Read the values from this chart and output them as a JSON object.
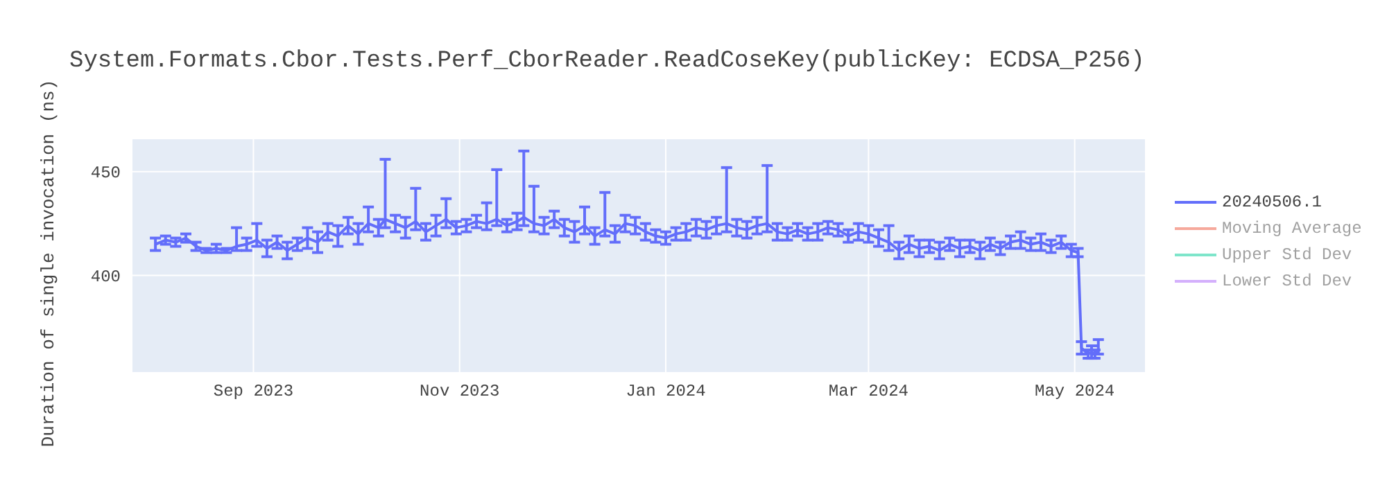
{
  "chart_data": {
    "type": "line",
    "title": "System.Formats.Cbor.Tests.Perf_CborReader.ReadCoseKey(publicKey: ECDSA_P256)",
    "ylabel": "Duration of single invocation (ns)",
    "x": [
      "2023-08-03",
      "2023-08-06",
      "2023-08-09",
      "2023-08-12",
      "2023-08-15",
      "2023-08-18",
      "2023-08-21",
      "2023-08-24",
      "2023-08-27",
      "2023-08-30",
      "2023-09-02",
      "2023-09-05",
      "2023-09-08",
      "2023-09-11",
      "2023-09-14",
      "2023-09-17",
      "2023-09-20",
      "2023-09-23",
      "2023-09-26",
      "2023-09-29",
      "2023-10-02",
      "2023-10-05",
      "2023-10-08",
      "2023-10-10",
      "2023-10-13",
      "2023-10-16",
      "2023-10-19",
      "2023-10-22",
      "2023-10-25",
      "2023-10-28",
      "2023-10-31",
      "2023-11-03",
      "2023-11-06",
      "2023-11-09",
      "2023-11-12",
      "2023-11-15",
      "2023-11-18",
      "2023-11-20",
      "2023-11-23",
      "2023-11-26",
      "2023-11-29",
      "2023-12-02",
      "2023-12-05",
      "2023-12-08",
      "2023-12-11",
      "2023-12-14",
      "2023-12-17",
      "2023-12-20",
      "2023-12-23",
      "2023-12-26",
      "2023-12-29",
      "2024-01-01",
      "2024-01-04",
      "2024-01-07",
      "2024-01-10",
      "2024-01-13",
      "2024-01-16",
      "2024-01-19",
      "2024-01-22",
      "2024-01-25",
      "2024-01-28",
      "2024-01-31",
      "2024-02-03",
      "2024-02-06",
      "2024-02-09",
      "2024-02-12",
      "2024-02-15",
      "2024-02-18",
      "2024-02-21",
      "2024-02-24",
      "2024-02-27",
      "2024-03-01",
      "2024-03-04",
      "2024-03-07",
      "2024-03-10",
      "2024-03-13",
      "2024-03-16",
      "2024-03-19",
      "2024-03-22",
      "2024-03-25",
      "2024-03-28",
      "2024-03-31",
      "2024-04-03",
      "2024-04-06",
      "2024-04-09",
      "2024-04-12",
      "2024-04-15",
      "2024-04-18",
      "2024-04-21",
      "2024-04-24",
      "2024-04-27",
      "2024-04-30",
      "2024-05-02",
      "2024-05-03",
      "2024-05-05",
      "2024-05-06",
      "2024-05-07",
      "2024-05-08"
    ],
    "series": [
      {
        "name": "20240506.1",
        "color": "#636efa",
        "values": [
          415,
          417,
          416,
          418,
          414,
          412,
          413,
          412,
          414,
          415,
          417,
          413,
          416,
          412,
          415,
          418,
          416,
          421,
          419,
          424,
          420,
          425,
          423,
          427,
          425,
          423,
          426,
          421,
          424,
          427,
          423,
          424,
          426,
          425,
          427,
          424,
          426,
          428,
          425,
          424,
          427,
          423,
          421,
          424,
          419,
          422,
          420,
          425,
          424,
          421,
          419,
          418,
          420,
          421,
          423,
          422,
          424,
          425,
          423,
          422,
          424,
          425,
          421,
          420,
          422,
          420,
          421,
          423,
          422,
          419,
          421,
          420,
          418,
          416,
          412,
          415,
          413,
          414,
          412,
          415,
          413,
          414,
          412,
          415,
          413,
          416,
          417,
          415,
          416,
          414,
          416,
          412,
          411,
          365,
          362,
          363,
          362,
          364
        ],
        "errors": [
          3,
          2,
          2,
          2,
          2,
          1,
          2,
          1,
          [
            412,
            423
          ],
          3,
          [
            414,
            425
          ],
          4,
          3,
          4,
          3,
          5,
          5,
          4,
          5,
          4,
          5,
          [
            421,
            433
          ],
          4,
          [
            423,
            456
          ],
          4,
          5,
          [
            422,
            442
          ],
          4,
          5,
          [
            423,
            437
          ],
          3,
          3,
          3,
          [
            422,
            435
          ],
          [
            424,
            451
          ],
          3,
          4,
          [
            424,
            460
          ],
          [
            421,
            443
          ],
          4,
          4,
          4,
          5,
          [
            420,
            433
          ],
          4,
          [
            419,
            440
          ],
          4,
          4,
          4,
          4,
          3,
          3,
          3,
          4,
          4,
          4,
          4,
          [
            421,
            452
          ],
          4,
          4,
          4,
          [
            421,
            453
          ],
          4,
          3,
          3,
          3,
          4,
          3,
          3,
          3,
          4,
          4,
          4,
          [
            412,
            424
          ],
          4,
          4,
          4,
          3,
          4,
          3,
          4,
          3,
          4,
          3,
          3,
          3,
          4,
          3,
          4,
          3,
          3,
          3,
          2,
          3,
          2,
          3,
          2,
          [
            362,
            369
          ]
        ]
      },
      {
        "name": "Moving Average",
        "color": "#ef553b",
        "values": [
          null,
          null,
          null,
          null,
          null,
          null,
          null,
          null,
          null,
          null,
          null,
          null,
          null,
          null,
          null,
          null,
          null,
          null,
          null,
          null,
          null,
          null,
          null,
          null,
          null,
          null,
          null,
          null,
          null,
          null,
          null,
          null,
          null,
          null,
          null,
          null,
          null,
          null,
          null,
          null,
          null,
          null,
          null,
          null,
          null,
          null,
          null,
          null,
          null,
          null,
          null,
          null,
          null,
          null,
          null,
          null,
          null,
          null,
          null,
          null,
          null,
          null,
          null,
          null,
          null,
          null,
          null,
          null,
          null,
          null,
          null,
          null,
          null,
          null,
          null,
          null,
          null,
          null,
          null,
          null,
          null,
          null,
          null,
          null,
          null,
          null,
          null,
          null,
          null,
          null,
          null,
          null,
          null,
          null,
          null,
          null,
          null,
          null
        ]
      },
      {
        "name": "Upper Std Dev",
        "color": "#00cc96",
        "values": [
          null,
          null,
          null,
          null,
          null,
          null,
          null,
          null,
          null,
          null,
          null,
          null,
          null,
          null,
          null,
          null,
          null,
          null,
          null,
          null,
          null,
          null,
          null,
          null,
          null,
          null,
          null,
          null,
          null,
          null,
          null,
          null,
          null,
          null,
          null,
          null,
          null,
          null,
          null,
          null,
          null,
          null,
          null,
          null,
          null,
          null,
          null,
          null,
          null,
          null,
          null,
          null,
          null,
          null,
          null,
          null,
          null,
          null,
          null,
          null,
          null,
          null,
          null,
          null,
          null,
          null,
          null,
          null,
          null,
          null,
          null,
          null,
          null,
          null,
          null,
          null,
          null,
          null,
          null,
          null,
          null,
          null,
          null,
          null,
          null,
          null,
          null,
          null,
          null,
          null,
          null,
          null,
          null,
          null,
          null,
          null,
          null,
          null
        ]
      },
      {
        "name": "Lower Std Dev",
        "color": "#ab63fa",
        "values": [
          null,
          null,
          null,
          null,
          null,
          null,
          null,
          null,
          null,
          null,
          null,
          null,
          null,
          null,
          null,
          null,
          null,
          null,
          null,
          null,
          null,
          null,
          null,
          null,
          null,
          null,
          null,
          null,
          null,
          null,
          null,
          null,
          null,
          null,
          null,
          null,
          null,
          null,
          null,
          null,
          null,
          null,
          null,
          null,
          null,
          null,
          null,
          null,
          null,
          null,
          null,
          null,
          null,
          null,
          null,
          null,
          null,
          null,
          null,
          null,
          null,
          null,
          null,
          null,
          null,
          null,
          null,
          null,
          null,
          null,
          null,
          null,
          null,
          null,
          null,
          null,
          null,
          null,
          null,
          null,
          null,
          null,
          null,
          null,
          null,
          null,
          null,
          null,
          null,
          null,
          null,
          null,
          null,
          null,
          null,
          null,
          null,
          null
        ]
      }
    ],
    "ylim": [
      353,
      466
    ],
    "yticks": [
      400,
      450
    ],
    "xlim": [
      "2023-07-27",
      "2024-05-22"
    ],
    "xticks": [
      {
        "value": "2023-09-01",
        "label": "Sep 2023"
      },
      {
        "value": "2023-11-01",
        "label": "Nov 2023"
      },
      {
        "value": "2024-01-01",
        "label": "Jan 2024"
      },
      {
        "value": "2024-03-01",
        "label": "Mar 2024"
      },
      {
        "value": "2024-05-01",
        "label": "May 2024"
      }
    ],
    "grid": true,
    "legend": "top right",
    "marker": "none",
    "line_style": "solid"
  }
}
